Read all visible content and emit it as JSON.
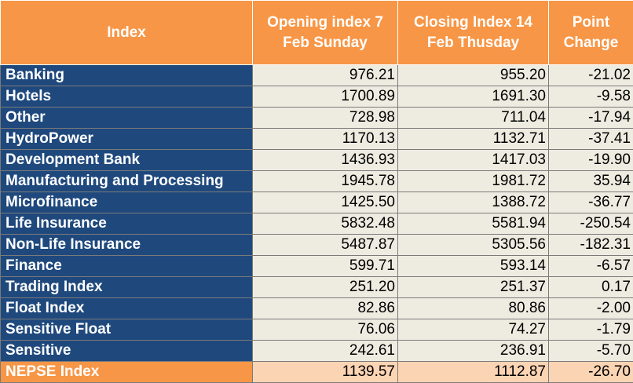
{
  "table": {
    "headers": {
      "index": "Index",
      "opening": "Opening index 7 Feb Sunday",
      "closing": "Closing Index 14 Feb Thusday",
      "change": "Point Change"
    },
    "rows": [
      {
        "name": "Banking",
        "opening": "976.21",
        "closing": "955.20",
        "change": "-21.02"
      },
      {
        "name": "Hotels",
        "opening": "1700.89",
        "closing": "1691.30",
        "change": "-9.58"
      },
      {
        "name": "Other",
        "opening": "728.98",
        "closing": "711.04",
        "change": "-17.94"
      },
      {
        "name": "HydroPower",
        "opening": "1170.13",
        "closing": "1132.71",
        "change": "-37.41"
      },
      {
        "name": "Development Bank",
        "opening": "1436.93",
        "closing": "1417.03",
        "change": "-19.90"
      },
      {
        "name": "Manufacturing and Processing",
        "opening": "1945.78",
        "closing": "1981.72",
        "change": "35.94"
      },
      {
        "name": "Microfinance",
        "opening": "1425.50",
        "closing": "1388.72",
        "change": "-36.77"
      },
      {
        "name": "Life Insurance",
        "opening": "5832.48",
        "closing": "5581.94",
        "change": "-250.54"
      },
      {
        "name": "Non-Life Insurance",
        "opening": "5487.87",
        "closing": "5305.56",
        "change": "-182.31"
      },
      {
        "name": "Finance",
        "opening": "599.71",
        "closing": "593.14",
        "change": "-6.57"
      },
      {
        "name": "Trading Index",
        "opening": "251.20",
        "closing": "251.37",
        "change": "0.17"
      },
      {
        "name": "Float Index",
        "opening": "82.86",
        "closing": "80.86",
        "change": "-2.00"
      },
      {
        "name": "Sensitive Float",
        "opening": "76.06",
        "closing": "74.27",
        "change": "-1.79"
      },
      {
        "name": "Sensitive",
        "opening": "242.61",
        "closing": "236.91",
        "change": "-5.70"
      },
      {
        "name": "NEPSE Index",
        "opening": "1139.57",
        "closing": "1112.87",
        "change": "-26.70"
      }
    ]
  },
  "colors": {
    "header_bg": "#f79646",
    "name_bg": "#1f497d",
    "value_bg": "#eeece1",
    "total_value_bg": "#fbd4b4"
  }
}
